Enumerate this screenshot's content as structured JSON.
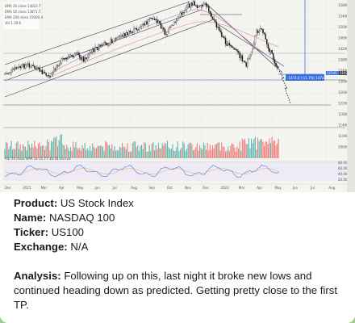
{
  "chart_data": {
    "type": "candlestick",
    "legend": [
      "EMA 20 close 14022.7",
      "EMA 50 close 13871.7",
      "EMA 200 close 15000.4",
      "Vol 1.30 K"
    ],
    "price_ticks": [
      "15800",
      "15400",
      "15000",
      "14600",
      "14200",
      "13800",
      "13400",
      "13000",
      "12600",
      "12200",
      "11800",
      "11400",
      "11000",
      "10600"
    ],
    "x_ticks": [
      "Dec",
      "2021",
      "Mar",
      "Apr",
      "May",
      "Jun",
      "Jul",
      "Aug",
      "Sep",
      "Oct",
      "Nov",
      "Dec",
      "2022",
      "Mar",
      "Apr",
      "May",
      "Jun",
      "Jul",
      "Aug"
    ],
    "price_badges": [
      "12545.1",
      "11974.1"
    ],
    "target_label": "-1474.0 (-11.7%) 1474.0",
    "rsi_label": "RSI 14 close SMA 14 51.77 38.38 n/a n/a",
    "rsi_ticks": [
      "80.00",
      "60.00",
      "40.00",
      "20.00"
    ],
    "colors": {
      "up": "#26a69a",
      "down": "#ef5350",
      "target": "#3d6fe0",
      "grid": "#e1e1dc",
      "candle": "#1b1b1b"
    }
  },
  "post": {
    "product_label": "Product:",
    "product_value": "US Stock Index",
    "name_label": "Name:",
    "name_value": "NASDAQ 100",
    "ticker_label": "Ticker:",
    "ticker_value": "US100",
    "exchange_label": "Exchange:",
    "exchange_value": "N/A",
    "analysis_label": "Analysis:",
    "analysis_text": "Following up on this, last night it broke new lows and continued heading down as predicted. Getting pretty close to the first TP."
  }
}
